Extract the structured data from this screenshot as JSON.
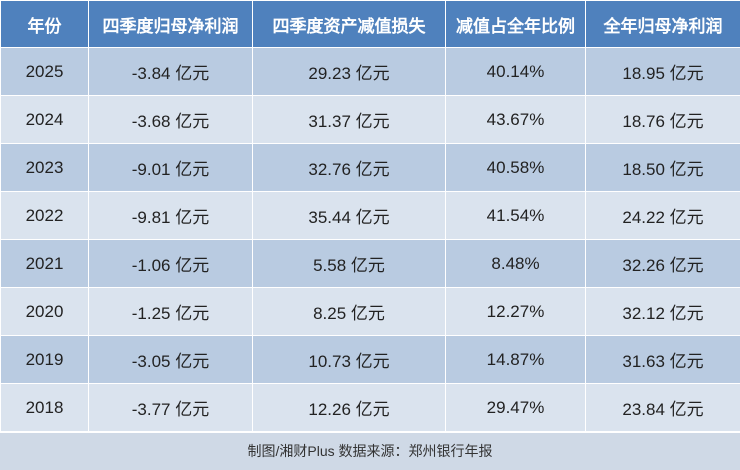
{
  "table": {
    "header": [
      "年份",
      "四季度归母净利润",
      "四季度资产减值损失",
      "减值占全年比例",
      "全年归母净利润"
    ],
    "rows": [
      [
        "2025",
        "-3.84 亿元",
        "29.23 亿元",
        "40.14%",
        "18.95 亿元"
      ],
      [
        "2024",
        "-3.68 亿元",
        "31.37 亿元",
        "43.67%",
        "18.76 亿元"
      ],
      [
        "2023",
        "-9.01 亿元",
        "32.76 亿元",
        "40.58%",
        "18.50 亿元"
      ],
      [
        "2022",
        "-9.81 亿元",
        "35.44 亿元",
        "41.54%",
        "24.22 亿元"
      ],
      [
        "2021",
        "-1.06 亿元",
        "5.58 亿元",
        "8.48%",
        "32.26 亿元"
      ],
      [
        "2020",
        "-1.25 亿元",
        "8.25 亿元",
        "12.27%",
        "32.12 亿元"
      ],
      [
        "2019",
        "-3.05 亿元",
        "10.73 亿元",
        "14.87%",
        "31.63 亿元"
      ],
      [
        "2018",
        "-3.77 亿元",
        "12.26 亿元",
        "29.47%",
        "23.84 亿元"
      ]
    ]
  },
  "footer": "制图/湘财Plus 数据来源：郑州银行年报"
}
